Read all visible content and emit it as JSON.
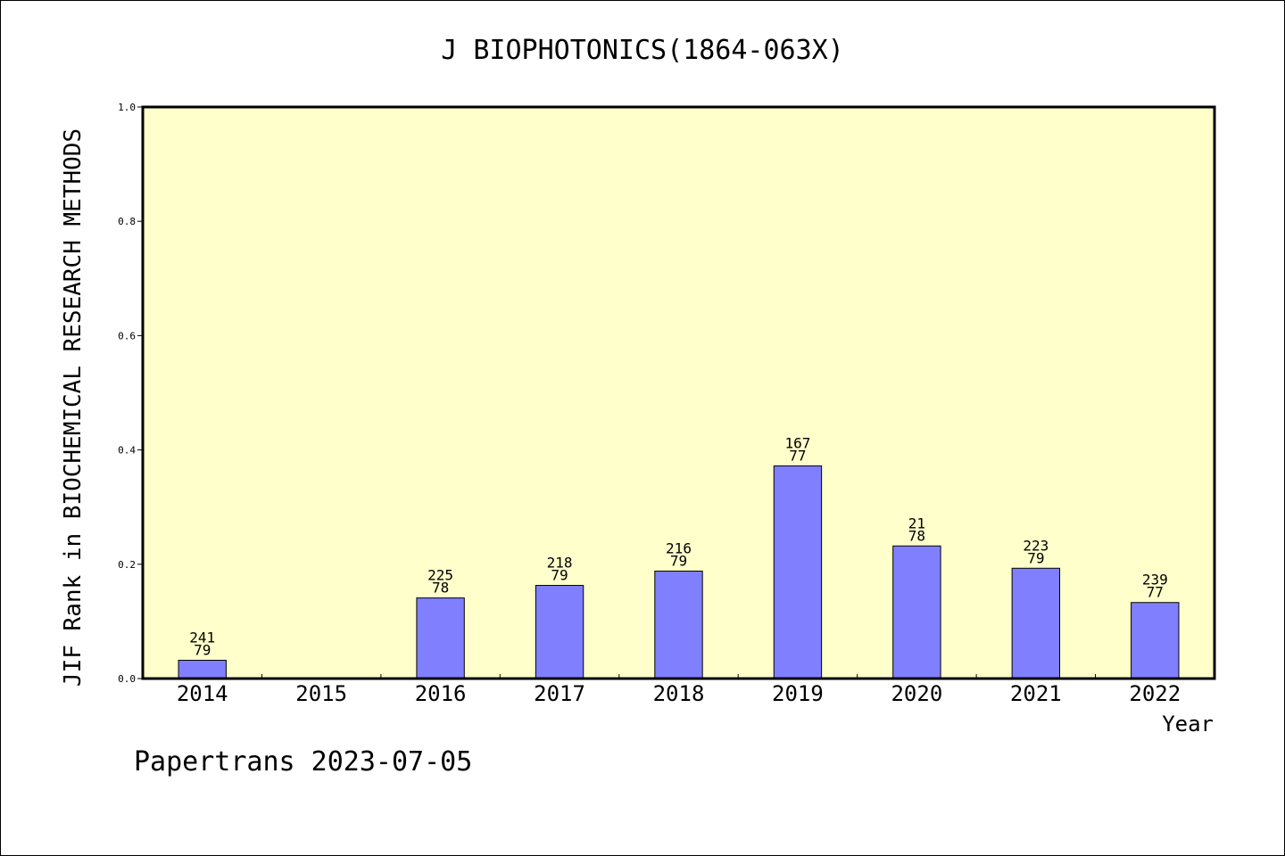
{
  "chart_data": {
    "type": "bar",
    "title": "J BIOPHOTONICS(1864-063X)",
    "xlabel": "Year",
    "ylabel": "JIF Rank in BIOCHEMICAL RESEARCH METHODS",
    "ylim": [
      0,
      1.0
    ],
    "yticks": [
      "0.0",
      "0.2",
      "0.4",
      "0.6",
      "0.8",
      "1.0"
    ],
    "categories": [
      "2014",
      "2015",
      "2016",
      "2017",
      "2018",
      "2019",
      "2020",
      "2021",
      "2022"
    ],
    "values": [
      0.032,
      null,
      0.141,
      0.163,
      0.188,
      0.372,
      0.232,
      0.193,
      0.133
    ],
    "labels": [
      {
        "top": "241",
        "bottom": "79"
      },
      null,
      {
        "top": "225",
        "bottom": "78"
      },
      {
        "top": "218",
        "bottom": "79"
      },
      {
        "top": "216",
        "bottom": "79"
      },
      {
        "top": "167",
        "bottom": "77"
      },
      {
        "top": "21",
        "bottom": "78"
      },
      {
        "top": "223",
        "bottom": "79"
      },
      {
        "top": "239",
        "bottom": "77"
      }
    ],
    "grid": false,
    "colors": {
      "plot_bg": "#ffffcc",
      "bar": "#8080ff",
      "bar_stroke": "#000000"
    }
  },
  "footer": "Papertrans 2023-07-05"
}
